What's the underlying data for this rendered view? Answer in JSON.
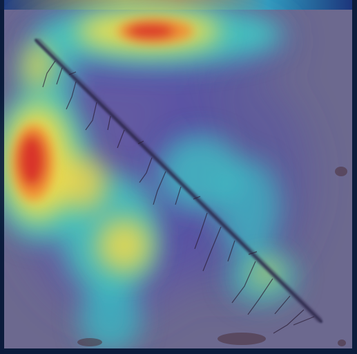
{
  "image": {
    "description_name": "heatmap-overlay-on-specimen-photo",
    "palette": {
      "base_dark": "#0a1b3a",
      "specimen": "#6d6b90",
      "low": "#5a4fb0",
      "mid_low": "#34c6c0",
      "mid": "#e7d84a",
      "high": "#e2542f",
      "peak": "#d8302a"
    },
    "overlay_colormap": [
      "#1c1e7a",
      "#3a55c8",
      "#34c6c0",
      "#7ed957",
      "#f0e04a",
      "#f08a32",
      "#d8302a"
    ]
  }
}
